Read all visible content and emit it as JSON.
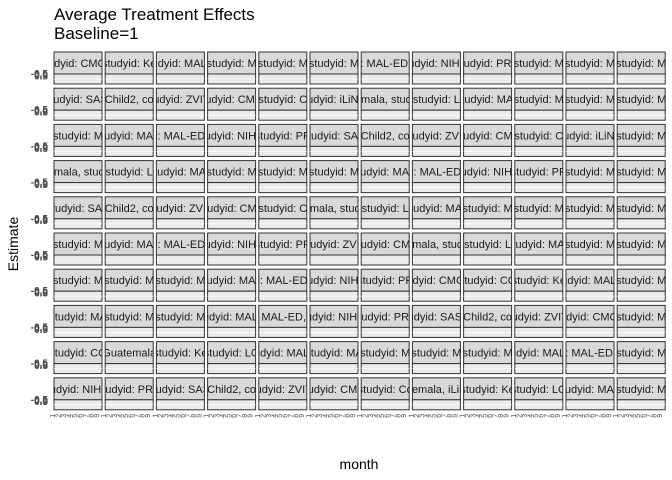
{
  "chart_data": {
    "type": "line",
    "title": "Average Treatment Effects",
    "subtitle": "Baseline=1",
    "xlabel": "month",
    "ylabel": "Estimate",
    "facet_rows": 10,
    "facet_cols": 12,
    "y_tick_labels": [
      "-0.5",
      "0.0",
      "0.5"
    ],
    "x_tick_labels": [
      "1",
      "2",
      "3",
      "4",
      "5",
      "6",
      "7",
      "8",
      "9"
    ],
    "facet_labels": [
      "studyid: CMC-V",
      "studyid: Ke",
      "studyid: MAL-E",
      "studyid: M",
      "studyid: M",
      "studyid: M",
      "studyid: MAL-ED, countr",
      "studyid: NIH-Bi",
      "studyid: PRO",
      "studyid: M",
      "studyid: M",
      "studyid: M",
      "studyid: SAS-",
      "Child2, co",
      "studyid: ZVITA",
      "studyid: CMC-",
      "studyid: C",
      "studyid: iLiNS-",
      "Guatemala, studyid: K",
      "studyid: L",
      "studyid: MAL",
      "studyid: M",
      "studyid: M",
      "studyid: M",
      "studyid: M",
      "studyid: MAL-",
      "studyid: MAL-ED, count",
      "studyid: NIH-B",
      "studyid: PR",
      "studyid: SAS",
      "Child2, co",
      "studyid: ZVIT",
      "studyid: CMC",
      "studyid: C",
      "studyid: iLiNS-",
      "studyid: M",
      "Guatemala, studyid: K",
      "studyid: L",
      "studyid: MAL",
      "studyid: M",
      "studyid: M",
      "studyid: M",
      "studyid: MAL-",
      "studyid: MAL-ED, count",
      "studyid: NIH-B",
      "studyid: PR",
      "studyid: M",
      "studyid: M",
      "studyid: SAS",
      "Child2, co",
      "studyid: ZVIT",
      "studyid: CMC",
      "studyid: C",
      "Guatemala, studyid: K",
      "studyid: L",
      "studyid: MAL",
      "studyid: M",
      "studyid: M",
      "studyid: M",
      "studyid: M",
      "studyid: M",
      "studyid: MAL-",
      "studyid: MAL-ED, count",
      "studyid: NIH-B",
      "studyid: PR",
      "studyid: ZVIT",
      "studyid: CMC",
      "Guatemala, studyid: K",
      "studyid: L",
      "studyid: MAL",
      "studyid: M",
      "studyid: M",
      "studyid: M",
      "studyid: M",
      "studyid: M",
      "studyid: MAL-",
      "studyid: MAL-ED, count",
      "studyid: NIH-B",
      "studyid: PR",
      "studyid: CMC-V",
      "studyid: CO",
      "studyid: Ke",
      "studyid: MAL-E",
      "studyid: M",
      "studyid: MA",
      "studyid: M",
      "studyid: M",
      "studyid: MAL-E",
      "studyid: MAL-ED, country",
      "studyid: NIH-Bi",
      "studyid: PRO",
      "studyid: SAS-C",
      "Child2, co",
      "studyid: ZVITA",
      "studyid: CMC-V",
      "studyid: M",
      "studyid: CO",
      "Guatemala",
      "studyid: Ke",
      "studyid: LO",
      "studyid: MAL-E",
      "studyid: MA",
      "studyid: M",
      "studyid: M",
      "studyid: M",
      "studyid: MAL-E",
      "studyid: MAL-ED, countr",
      "studyid: M",
      "studyid: NIH-Bi",
      "studyid: PRO",
      "studyid: SAS-",
      "Child2, co",
      "studyid: ZVITA",
      "studyid: CMC-",
      "studyid: Co",
      "Guatemala, iLiNS-Z",
      "studyid: Ke",
      "studyid: LO",
      "studyid: MAL-",
      "studyid: M"
    ],
    "grid": true,
    "legend": "none"
  }
}
